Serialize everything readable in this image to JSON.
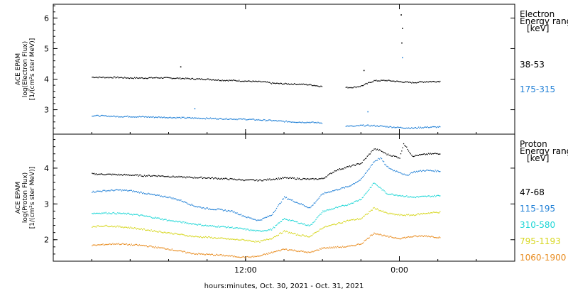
{
  "xlabel": "hours:minutes, Oct. 30, 2021 - Oct. 31, 2021",
  "x_range_hours": [
    0,
    24
  ],
  "x_ticks": [
    {
      "label": "12:00",
      "hours": 12
    },
    {
      "label": "0:00",
      "hours": 24
    }
  ],
  "panels": [
    {
      "id": "electron",
      "ylabel_lines": [
        "ACE EPAM",
        "log(Electron Flux)",
        "[1/(cm²s ster MeV)]"
      ],
      "legend_title": [
        "Electron",
        "Energy range",
        "[keV]"
      ],
      "ylim": [
        2.2,
        6.45
      ],
      "yticks": [
        3,
        4,
        5,
        6
      ]
    },
    {
      "id": "proton",
      "ylabel_lines": [
        "ACE EPAM",
        "log(Proton Flux)",
        "[1/(cm²s ster MeV)]"
      ],
      "legend_title": [
        "Proton",
        "Energy range",
        "[keV]"
      ],
      "ylim": [
        1.4,
        4.95
      ],
      "yticks": [
        2,
        3,
        4
      ]
    }
  ],
  "colors": {
    "black": "#000000",
    "blue": "#1f7fd6",
    "cyan": "#1cd6d6",
    "yellow": "#d6d61c",
    "orange": "#e88a1c"
  },
  "chart_data": [
    {
      "type": "scatter",
      "panel": "electron",
      "xlabel": "hours:minutes, Oct. 30, 2021 - Oct. 31, 2021",
      "ylabel": "ACE EPAM log(Electron Flux) [1/(cm²s ster MeV)]",
      "ylim": [
        2.2,
        6.45
      ],
      "x_unit": "hours since Oct. 30, 2021 00:00",
      "series": [
        {
          "name": "38-53",
          "color": "#000000",
          "x": [
            0,
            1,
            2,
            3,
            4,
            5,
            6,
            7,
            8,
            9,
            10,
            11,
            12,
            13,
            13.5,
            14,
            15,
            16,
            17,
            18,
            19,
            19.8,
            20.5,
            21,
            22,
            23,
            24,
            25,
            26,
            27,
            27.2
          ],
          "y": [
            4.08,
            4.07,
            4.07,
            4.05,
            4.05,
            4.06,
            4.05,
            4.04,
            4.02,
            4.01,
            3.98,
            3.97,
            3.95,
            3.93,
            3.92,
            3.88,
            3.86,
            3.85,
            3.83,
            3.77,
            null,
            3.74,
            3.75,
            3.79,
            3.96,
            3.97,
            3.93,
            3.9,
            3.93,
            3.94,
            3.94
          ],
          "spikes": [
            {
              "x": 6.9,
              "y": 4.42
            },
            {
              "x": 24.1,
              "y": 6.12
            },
            {
              "x": 24.2,
              "y": 5.68
            },
            {
              "x": 24.15,
              "y": 5.2
            },
            {
              "x": 21.2,
              "y": 4.3
            }
          ]
        },
        {
          "name": "175-315",
          "color": "#1f7fd6",
          "x": [
            0,
            1,
            2,
            3,
            4,
            5,
            6,
            7,
            8,
            9,
            10,
            11,
            12,
            13,
            14,
            15,
            16,
            17,
            18,
            19,
            19.8,
            20.5,
            21,
            22,
            23,
            24,
            25,
            26,
            27,
            27.2
          ],
          "y": [
            2.82,
            2.81,
            2.79,
            2.79,
            2.78,
            2.77,
            2.76,
            2.75,
            2.74,
            2.73,
            2.72,
            2.71,
            2.7,
            2.68,
            2.66,
            2.63,
            2.61,
            2.6,
            2.58,
            null,
            2.48,
            2.47,
            2.5,
            2.49,
            2.46,
            2.43,
            2.41,
            2.44,
            2.45,
            2.45
          ],
          "spikes": [
            {
              "x": 8.0,
              "y": 3.05
            },
            {
              "x": 21.5,
              "y": 2.95
            },
            {
              "x": 24.2,
              "y": 4.72
            }
          ]
        }
      ]
    },
    {
      "type": "scatter",
      "panel": "proton",
      "xlabel": "hours:minutes, Oct. 30, 2021 - Oct. 31, 2021",
      "ylabel": "ACE EPAM log(Proton Flux) [1/(cm²s ster MeV)]",
      "ylim": [
        1.4,
        4.95
      ],
      "x_unit": "hours since Oct. 30, 2021 00:00",
      "series": [
        {
          "name": "47-68",
          "color": "#000000",
          "x": [
            0,
            1,
            2,
            3,
            4,
            5,
            6,
            7,
            8,
            9,
            10,
            11,
            12,
            13,
            14,
            15,
            16,
            17,
            18,
            19,
            20,
            21,
            22,
            22.5,
            23,
            23.5,
            24,
            24.3,
            25,
            26,
            27,
            27.2
          ],
          "y": [
            3.85,
            3.84,
            3.83,
            3.82,
            3.8,
            3.8,
            3.78,
            3.76,
            3.75,
            3.74,
            3.72,
            3.7,
            3.68,
            3.67,
            3.7,
            3.74,
            3.72,
            3.7,
            3.72,
            3.95,
            4.05,
            4.15,
            4.55,
            4.5,
            4.4,
            4.35,
            4.3,
            4.7,
            4.35,
            4.4,
            4.42,
            4.42
          ]
        },
        {
          "name": "115-195",
          "color": "#1f7fd6",
          "x": [
            0,
            1,
            2,
            3,
            4,
            5,
            6,
            7,
            8,
            9,
            10,
            11,
            12,
            13,
            14,
            15,
            16,
            17,
            18,
            19,
            20,
            21,
            22,
            22.5,
            23,
            23.5,
            24,
            24.5,
            25,
            26,
            27,
            27.2
          ],
          "y": [
            3.35,
            3.38,
            3.4,
            3.38,
            3.32,
            3.25,
            3.2,
            3.1,
            2.95,
            2.88,
            2.85,
            2.8,
            2.65,
            2.55,
            2.7,
            3.2,
            3.05,
            2.9,
            3.3,
            3.4,
            3.5,
            3.7,
            4.2,
            4.3,
            4.05,
            3.95,
            3.9,
            3.8,
            3.9,
            3.95,
            3.93,
            3.93
          ]
        },
        {
          "name": "310-580",
          "color": "#1cd6d6",
          "x": [
            0,
            1,
            2,
            3,
            4,
            5,
            6,
            7,
            8,
            9,
            10,
            11,
            12,
            13,
            14,
            15,
            16,
            17,
            18,
            19,
            20,
            21,
            22,
            23,
            24,
            25,
            26,
            27,
            27.2
          ],
          "y": [
            2.75,
            2.76,
            2.75,
            2.73,
            2.68,
            2.62,
            2.55,
            2.5,
            2.45,
            2.4,
            2.38,
            2.35,
            2.3,
            2.25,
            2.3,
            2.6,
            2.5,
            2.4,
            2.8,
            2.9,
            3.0,
            3.15,
            3.6,
            3.3,
            3.25,
            3.2,
            3.22,
            3.24,
            3.24
          ]
        },
        {
          "name": "795-1193",
          "color": "#d6d61c",
          "x": [
            0,
            1,
            2,
            3,
            4,
            5,
            6,
            7,
            8,
            9,
            10,
            11,
            12,
            13,
            14,
            15,
            16,
            17,
            18,
            19,
            20,
            21,
            22,
            23,
            24,
            25,
            26,
            27,
            27.2
          ],
          "y": [
            2.38,
            2.4,
            2.38,
            2.35,
            2.3,
            2.25,
            2.2,
            2.15,
            2.1,
            2.08,
            2.05,
            2.02,
            2.0,
            1.95,
            2.05,
            2.25,
            2.15,
            2.1,
            2.35,
            2.45,
            2.55,
            2.6,
            2.9,
            2.75,
            2.7,
            2.7,
            2.75,
            2.78,
            2.78
          ]
        },
        {
          "name": "1060-1900",
          "color": "#e88a1c",
          "x": [
            0,
            1,
            2,
            3,
            4,
            5,
            6,
            7,
            8,
            9,
            10,
            11,
            12,
            13,
            14,
            15,
            16,
            17,
            18,
            19,
            20,
            21,
            22,
            23,
            24,
            25,
            26,
            27,
            27.2
          ],
          "y": [
            1.85,
            1.88,
            1.9,
            1.87,
            1.85,
            1.8,
            1.75,
            1.68,
            1.62,
            1.6,
            1.58,
            1.55,
            1.52,
            1.55,
            1.65,
            1.75,
            1.7,
            1.65,
            1.78,
            1.8,
            1.82,
            1.9,
            2.2,
            2.1,
            2.05,
            2.1,
            2.12,
            2.08,
            2.08
          ]
        }
      ]
    }
  ]
}
